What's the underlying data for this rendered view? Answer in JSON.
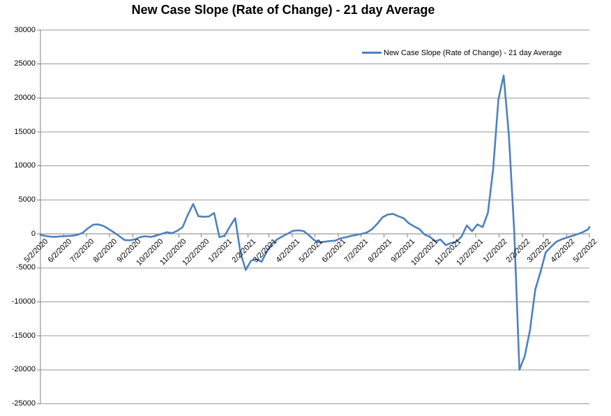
{
  "title": "New Case Slope (Rate of Change) - 21 day Average",
  "legend": {
    "label": "New Case Slope (Rate of Change) - 21 day Average"
  },
  "colors": {
    "series": "#4F81BD",
    "gridline": "#999999",
    "axis": "#808080",
    "background": "#FFFFFF",
    "text": "#000000"
  },
  "chart_data": {
    "type": "line",
    "title": "New Case Slope (Rate of Change) - 21 day Average",
    "xlabel": "",
    "ylabel": "",
    "grid": "horizontal",
    "legend_position": "top-right-inside",
    "ylim": [
      -25000,
      30000
    ],
    "xlim": [
      "5/2/2020",
      "5/2/2022"
    ],
    "y_ticks": [
      30000,
      25000,
      20000,
      15000,
      10000,
      5000,
      0,
      -5000,
      -10000,
      -15000,
      -20000,
      -25000
    ],
    "y_tick_labels": [
      "30000",
      "25000",
      "20000",
      "15000",
      "10000",
      "5000",
      "0",
      "-5000",
      "-10000",
      "-15000",
      "-20000",
      "-25000"
    ],
    "x_tick_labels": [
      "5/2/2020",
      "6/2/2020",
      "7/2/2020",
      "8/2/2020",
      "9/2/2020",
      "10/2/2020",
      "11/2/2020",
      "12/2/2020",
      "1/2/2021",
      "2/2/2021",
      "3/2/2021",
      "4/2/2021",
      "5/2/2021",
      "6/2/2021",
      "7/2/2021",
      "8/2/2021",
      "9/2/2021",
      "10/2/2021",
      "11/2/2021",
      "12/2/2021",
      "1/2/2022",
      "2/2/2022",
      "3/2/2022",
      "4/2/2022",
      "5/2/2022"
    ],
    "series": [
      {
        "name": "New Case Slope (Rate of Change) - 21 day Average",
        "color": "#4F81BD",
        "points": [
          {
            "date": "5/2/2020",
            "value": -150
          },
          {
            "date": "5/9/2020",
            "value": -300
          },
          {
            "date": "5/16/2020",
            "value": -420
          },
          {
            "date": "5/23/2020",
            "value": -420
          },
          {
            "date": "5/30/2020",
            "value": -350
          },
          {
            "date": "6/6/2020",
            "value": -320
          },
          {
            "date": "6/13/2020",
            "value": -280
          },
          {
            "date": "6/20/2020",
            "value": -150
          },
          {
            "date": "6/27/2020",
            "value": 150
          },
          {
            "date": "7/4/2020",
            "value": 800
          },
          {
            "date": "7/11/2020",
            "value": 1350
          },
          {
            "date": "7/18/2020",
            "value": 1400
          },
          {
            "date": "7/25/2020",
            "value": 1150
          },
          {
            "date": "8/1/2020",
            "value": 700
          },
          {
            "date": "8/8/2020",
            "value": 200
          },
          {
            "date": "8/15/2020",
            "value": -350
          },
          {
            "date": "8/22/2020",
            "value": -900
          },
          {
            "date": "8/29/2020",
            "value": -950
          },
          {
            "date": "9/5/2020",
            "value": -800
          },
          {
            "date": "9/12/2020",
            "value": -450
          },
          {
            "date": "9/19/2020",
            "value": -350
          },
          {
            "date": "9/26/2020",
            "value": -450
          },
          {
            "date": "10/3/2020",
            "value": -250
          },
          {
            "date": "10/10/2020",
            "value": 0
          },
          {
            "date": "10/17/2020",
            "value": 250
          },
          {
            "date": "10/24/2020",
            "value": 100
          },
          {
            "date": "10/31/2020",
            "value": 450
          },
          {
            "date": "11/7/2020",
            "value": 1000
          },
          {
            "date": "11/14/2020",
            "value": 2800
          },
          {
            "date": "11/21/2020",
            "value": 4400
          },
          {
            "date": "11/28/2020",
            "value": 2600
          },
          {
            "date": "12/5/2020",
            "value": 2520
          },
          {
            "date": "12/12/2020",
            "value": 2560
          },
          {
            "date": "12/19/2020",
            "value": 3080
          },
          {
            "date": "12/26/2020",
            "value": -480
          },
          {
            "date": "1/2/2021",
            "value": -280
          },
          {
            "date": "1/9/2021",
            "value": 1100
          },
          {
            "date": "1/16/2021",
            "value": 2310
          },
          {
            "date": "1/23/2021",
            "value": -2800
          },
          {
            "date": "1/30/2021",
            "value": -5300
          },
          {
            "date": "2/6/2021",
            "value": -3950
          },
          {
            "date": "2/13/2021",
            "value": -3750
          },
          {
            "date": "2/20/2021",
            "value": -4100
          },
          {
            "date": "2/27/2021",
            "value": -2600
          },
          {
            "date": "3/6/2021",
            "value": -1450
          },
          {
            "date": "3/13/2021",
            "value": -800
          },
          {
            "date": "3/20/2021",
            "value": -350
          },
          {
            "date": "3/27/2021",
            "value": 50
          },
          {
            "date": "4/3/2021",
            "value": 450
          },
          {
            "date": "4/10/2021",
            "value": 520
          },
          {
            "date": "4/17/2021",
            "value": 420
          },
          {
            "date": "4/24/2021",
            "value": -200
          },
          {
            "date": "5/1/2021",
            "value": -900
          },
          {
            "date": "5/8/2021",
            "value": -1250
          },
          {
            "date": "5/15/2021",
            "value": -1150
          },
          {
            "date": "5/22/2021",
            "value": -1050
          },
          {
            "date": "5/29/2021",
            "value": -1000
          },
          {
            "date": "6/5/2021",
            "value": -650
          },
          {
            "date": "6/12/2021",
            "value": -500
          },
          {
            "date": "6/19/2021",
            "value": -300
          },
          {
            "date": "6/26/2021",
            "value": -150
          },
          {
            "date": "7/3/2021",
            "value": 0
          },
          {
            "date": "7/10/2021",
            "value": 200
          },
          {
            "date": "7/17/2021",
            "value": 700
          },
          {
            "date": "7/24/2021",
            "value": 1500
          },
          {
            "date": "7/31/2021",
            "value": 2450
          },
          {
            "date": "8/7/2021",
            "value": 2850
          },
          {
            "date": "8/14/2021",
            "value": 2950
          },
          {
            "date": "8/21/2021",
            "value": 2600
          },
          {
            "date": "8/28/2021",
            "value": 2300
          },
          {
            "date": "9/4/2021",
            "value": 1550
          },
          {
            "date": "9/11/2021",
            "value": 1100
          },
          {
            "date": "9/18/2021",
            "value": 700
          },
          {
            "date": "9/25/2021",
            "value": -100
          },
          {
            "date": "10/2/2021",
            "value": -450
          },
          {
            "date": "10/9/2021",
            "value": -1100
          },
          {
            "date": "10/16/2021",
            "value": -820
          },
          {
            "date": "10/23/2021",
            "value": -1650
          },
          {
            "date": "10/30/2021",
            "value": -1350
          },
          {
            "date": "11/6/2021",
            "value": -1150
          },
          {
            "date": "11/13/2021",
            "value": -400
          },
          {
            "date": "11/20/2021",
            "value": 1240
          },
          {
            "date": "11/27/2021",
            "value": 400
          },
          {
            "date": "12/4/2021",
            "value": 1400
          },
          {
            "date": "12/11/2021",
            "value": 1000
          },
          {
            "date": "12/18/2021",
            "value": 3100
          },
          {
            "date": "12/25/2021",
            "value": 9500
          },
          {
            "date": "1/1/2022",
            "value": 19800
          },
          {
            "date": "1/8/2022",
            "value": 23300
          },
          {
            "date": "1/15/2022",
            "value": 14500
          },
          {
            "date": "1/22/2022",
            "value": 500
          },
          {
            "date": "1/29/2022",
            "value": -20000
          },
          {
            "date": "2/5/2022",
            "value": -18000
          },
          {
            "date": "2/12/2022",
            "value": -14200
          },
          {
            "date": "2/19/2022",
            "value": -8200
          },
          {
            "date": "2/26/2022",
            "value": -5600
          },
          {
            "date": "3/5/2022",
            "value": -2700
          },
          {
            "date": "3/12/2022",
            "value": -1900
          },
          {
            "date": "3/19/2022",
            "value": -1150
          },
          {
            "date": "3/26/2022",
            "value": -800
          },
          {
            "date": "4/2/2022",
            "value": -550
          },
          {
            "date": "4/9/2022",
            "value": -300
          },
          {
            "date": "4/16/2022",
            "value": -50
          },
          {
            "date": "4/23/2022",
            "value": 250
          },
          {
            "date": "4/30/2022",
            "value": 650
          },
          {
            "date": "5/2/2022",
            "value": 1000
          }
        ]
      }
    ]
  }
}
